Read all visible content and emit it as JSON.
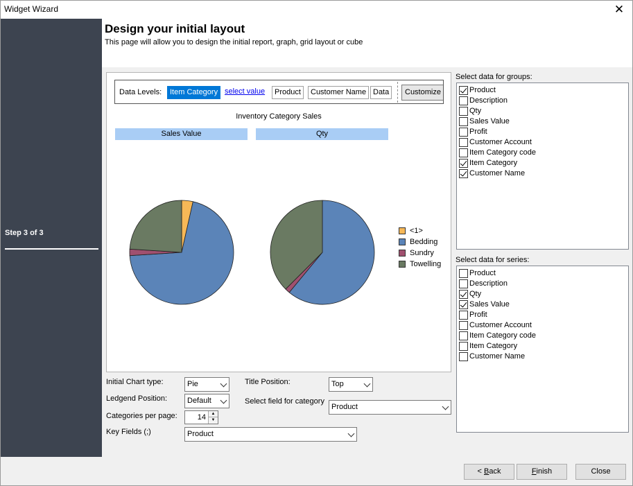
{
  "window": {
    "title": "Widget Wizard",
    "close_glyph": "✕"
  },
  "sidebar": {
    "step": "Step 3 of 3"
  },
  "header": {
    "title": "Design your initial layout",
    "subtitle": "This page will allow you to design the initial report, graph, grid layout or cube"
  },
  "levels": {
    "label": "Data Levels:",
    "items": [
      "Item Category",
      "select value",
      "Product",
      "Customer Name",
      "Data"
    ],
    "customize": "Customize C"
  },
  "chart_data": {
    "type": "pie",
    "title": "Inventory Category Sales",
    "categories": [
      "<1>",
      "Bedding",
      "Sundry",
      "Towelling"
    ],
    "colors": [
      "#f7b857",
      "#5b84b8",
      "#a0506f",
      "#6a7a62"
    ],
    "series": [
      {
        "name": "Sales Value",
        "values": [
          3.5,
          70.5,
          2,
          24
        ]
      },
      {
        "name": "Qty",
        "values": [
          0,
          61,
          1.5,
          37.5
        ]
      }
    ],
    "legend": "right"
  },
  "options": {
    "chart_type_label": "Initial Chart type:",
    "chart_type_value": "Pie",
    "title_position_label": "Title Position:",
    "title_position_value": "Top",
    "legend_position_label": "Ledgend Position:",
    "legend_position_value": "Default",
    "category_field_label": "Select field for category",
    "category_field_value": "Product",
    "categories_per_page_label": "Categories per page:",
    "categories_per_page_value": "14",
    "key_fields_label": "Key Fields (;)",
    "key_fields_value": "Product"
  },
  "groups": {
    "label": "Select data for groups:",
    "items": [
      {
        "label": "Product",
        "checked": true
      },
      {
        "label": "Description",
        "checked": false
      },
      {
        "label": "Qty",
        "checked": false
      },
      {
        "label": "Sales Value",
        "checked": false
      },
      {
        "label": "Profit",
        "checked": false
      },
      {
        "label": "Customer Account",
        "checked": false
      },
      {
        "label": "Item Category code",
        "checked": false
      },
      {
        "label": "Item Category",
        "checked": true
      },
      {
        "label": "Customer Name",
        "checked": true
      }
    ]
  },
  "series": {
    "label": "Select data for series:",
    "items": [
      {
        "label": "Product",
        "checked": false
      },
      {
        "label": "Description",
        "checked": false
      },
      {
        "label": "Qty",
        "checked": true
      },
      {
        "label": "Sales Value",
        "checked": true
      },
      {
        "label": "Profit",
        "checked": false
      },
      {
        "label": "Customer Account",
        "checked": false
      },
      {
        "label": "Item Category code",
        "checked": false
      },
      {
        "label": "Item Category",
        "checked": false
      },
      {
        "label": "Customer Name",
        "checked": false
      }
    ]
  },
  "buttons": {
    "back_prefix": "< ",
    "back_key": "B",
    "back_rest": "ack",
    "finish_key": "F",
    "finish_rest": "inish",
    "close": "Close"
  }
}
